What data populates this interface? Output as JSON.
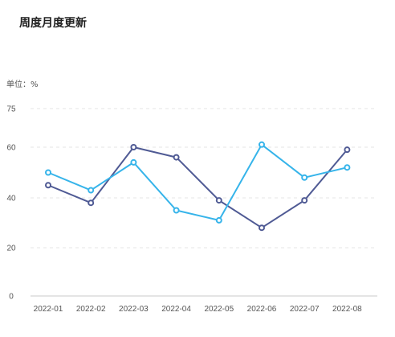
{
  "chart_data": {
    "type": "line",
    "title": "周度月度更新",
    "unit_label": "单位：%",
    "categories": [
      "2022-01",
      "2022-02",
      "2022-03",
      "2022-04",
      "2022-05",
      "2022-06",
      "2022-07",
      "2022-08"
    ],
    "y_ticks": [
      "0",
      "20",
      "40",
      "60",
      "75"
    ],
    "series": [
      {
        "color": "#4f5a94",
        "values": [
          45,
          38,
          60,
          56,
          39,
          28,
          39,
          59
        ]
      },
      {
        "color": "#36b4ea",
        "values": [
          50,
          43,
          54,
          35,
          31,
          61,
          48,
          52
        ]
      }
    ],
    "grid": true,
    "xlabel": "",
    "ylabel": ""
  }
}
